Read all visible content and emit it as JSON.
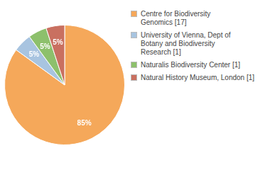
{
  "chart_data": {
    "type": "pie",
    "categories": [
      "Centre for Biodiversity\nGenomics [17]",
      "University of Vienna, Dept of\nBotany and Biodiversity\nResearch [1]",
      "Naturalis Biodiversity Center [1]",
      "Natural History Museum, London [1]"
    ],
    "values": [
      85,
      5,
      5,
      5
    ],
    "value_labels": [
      "85%",
      "5%",
      "5%",
      "5%"
    ],
    "colors": [
      "#F5A85A",
      "#A8C4E0",
      "#8DC06C",
      "#C97060"
    ],
    "data_labels": true,
    "legend": "right"
  }
}
